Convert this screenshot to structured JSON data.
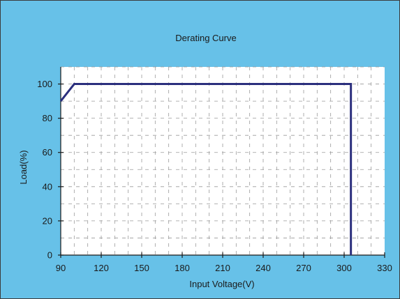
{
  "chart_data": {
    "type": "line",
    "title": "Derating Curve",
    "xlabel": "Input Voltage(V)",
    "ylabel": "Load(%)",
    "xlim": [
      90,
      330
    ],
    "ylim": [
      0,
      110
    ],
    "xticks": [
      90,
      120,
      150,
      180,
      210,
      240,
      270,
      300,
      330
    ],
    "yticks": [
      0,
      20,
      40,
      60,
      80,
      100
    ],
    "grid": true,
    "series": [
      {
        "x": [
          90,
          100,
          305,
          305
        ],
        "y": [
          90,
          100,
          100,
          0
        ]
      }
    ]
  },
  "colors": {
    "background": "#67c1e8",
    "plot_area": "#ffffff",
    "line": "#2b2f7d",
    "grid": "#9a9a9a",
    "axis": "#1a1a1a"
  }
}
